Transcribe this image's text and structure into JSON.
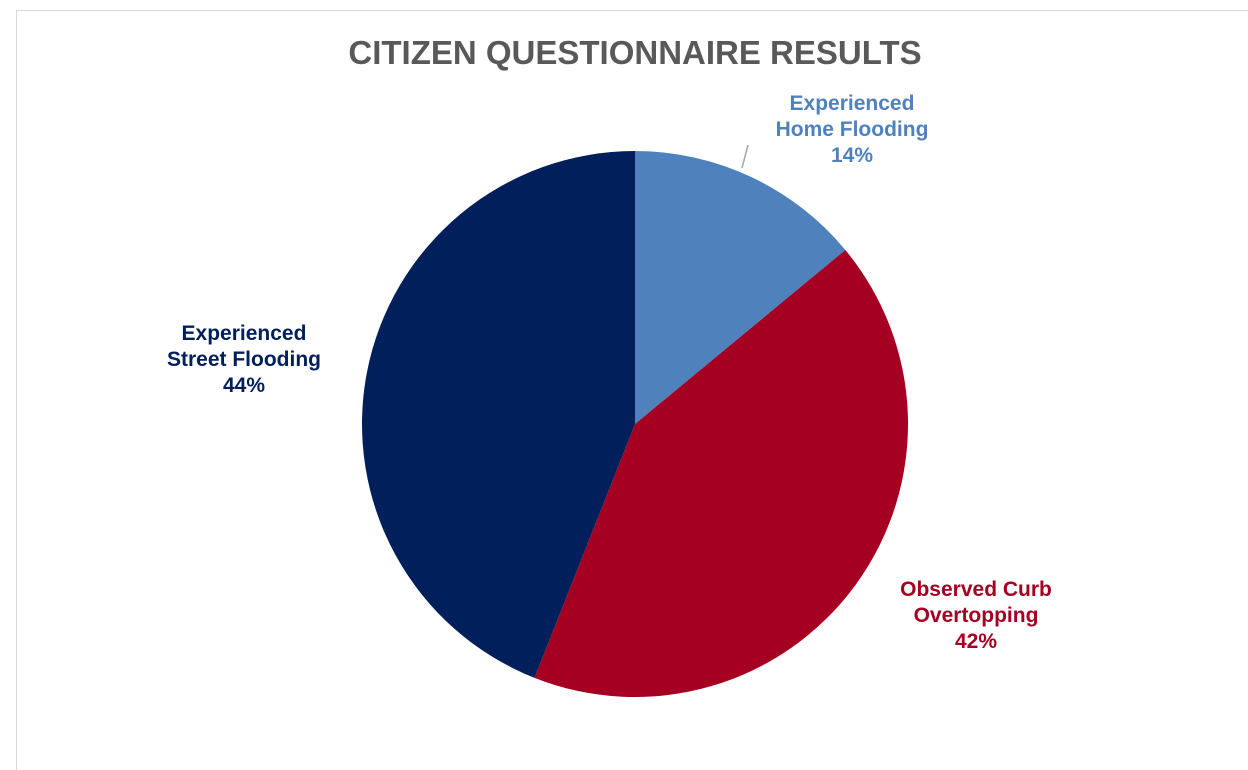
{
  "chart_data": {
    "type": "pie",
    "title": "CITIZEN QUESTIONNAIRE RESULTS",
    "slices": [
      {
        "name_lines": [
          "Experienced",
          "Home Flooding"
        ],
        "value": 14,
        "value_label": "14%",
        "color": "#4f81bd"
      },
      {
        "name_lines": [
          "Observed Curb",
          "Overtopping"
        ],
        "value": 42,
        "value_label": "42%",
        "color": "#a50021"
      },
      {
        "name_lines": [
          "Experienced",
          "Street Flooding"
        ],
        "value": 44,
        "value_label": "44%",
        "color": "#001f5b"
      }
    ],
    "start_angle_deg": 0,
    "direction": "clockwise",
    "legend": "none",
    "label_colors_match_slices": true
  }
}
